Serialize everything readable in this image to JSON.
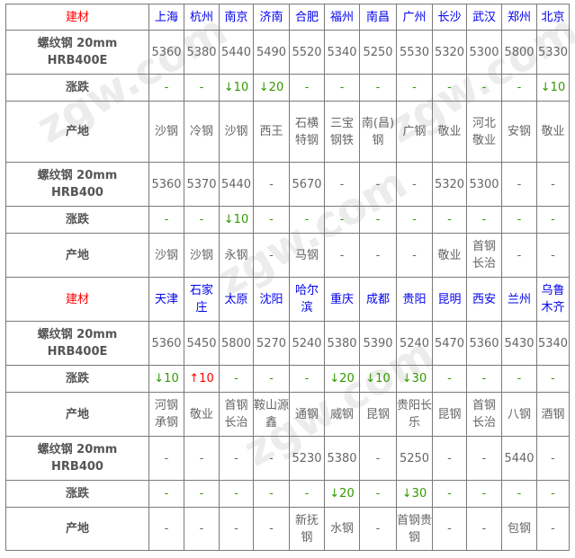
{
  "colors": {
    "header_label": "#ff0000",
    "city": "#0000ee",
    "down": "#339900",
    "up": "#ff0000",
    "text": "#666666"
  },
  "labels": {
    "material": "建材",
    "spec_e": "螺纹钢 20mm HRB400E",
    "spec": "螺纹钢 20mm HRB400",
    "change": "涨跌",
    "origin": "产地"
  },
  "blocks": [
    {
      "cities": [
        "上海",
        "杭州",
        "南京",
        "济南",
        "合肥",
        "福州",
        "南昌",
        "广州",
        "长沙",
        "武汉",
        "郑州",
        "北京"
      ],
      "hrb400e_price": [
        "5360",
        "5380",
        "5440",
        "5490",
        "5520",
        "5340",
        "5250",
        "5530",
        "5320",
        "5300",
        "5800",
        "5330"
      ],
      "hrb400e_change": [
        "-",
        "-",
        "↓10",
        "↓20",
        "-",
        "-",
        "-",
        "-",
        "-",
        "-",
        "-",
        "↓10"
      ],
      "hrb400e_origin": [
        "沙钢",
        "冷钢",
        "沙钢",
        "西王",
        "石横特钢",
        "三宝钢铁",
        "南(昌)钢",
        "广钢",
        "敬业",
        "河北敬业",
        "安钢",
        "敬业"
      ],
      "hrb400_price": [
        "5360",
        "5370",
        "5440",
        "-",
        "5670",
        "-",
        "-",
        "-",
        "5320",
        "5300",
        "-",
        "-"
      ],
      "hrb400_change": [
        "-",
        "-",
        "↓10",
        "-",
        "-",
        "-",
        "-",
        "-",
        "-",
        "-",
        "-",
        "-"
      ],
      "hrb400_origin": [
        "沙钢",
        "沙钢",
        "永钢",
        "-",
        "马钢",
        "-",
        "-",
        "-",
        "敬业",
        "首钢长治",
        "-",
        "-"
      ]
    },
    {
      "cities": [
        "天津",
        "石家庄",
        "太原",
        "沈阳",
        "哈尔滨",
        "重庆",
        "成都",
        "贵阳",
        "昆明",
        "西安",
        "兰州",
        "乌鲁木齐"
      ],
      "hrb400e_price": [
        "5360",
        "5450",
        "5800",
        "5270",
        "5240",
        "5380",
        "5390",
        "5240",
        "5470",
        "5360",
        "5430",
        "5340"
      ],
      "hrb400e_change": [
        "↓10",
        "↑10",
        "-",
        "-",
        "-",
        "↓20",
        "↓10",
        "↓30",
        "-",
        "-",
        "-",
        "-"
      ],
      "hrb400e_origin": [
        "河钢承钢",
        "敬业",
        "首钢长治",
        "鞍山源鑫",
        "通钢",
        "威钢",
        "昆钢",
        "贵阳长乐",
        "昆钢",
        "首钢长治",
        "八钢",
        "酒钢"
      ],
      "hrb400_price": [
        "-",
        "-",
        "-",
        "-",
        "5230",
        "5380",
        "-",
        "5250",
        "-",
        "-",
        "5440",
        "-"
      ],
      "hrb400_change": [
        "-",
        "-",
        "-",
        "-",
        "-",
        "↓20",
        "-",
        "↓30",
        "-",
        "-",
        "-",
        "-"
      ],
      "hrb400_origin": [
        "-",
        "-",
        "-",
        "-",
        "新抚钢",
        "水钢",
        "-",
        "首钢贵钢",
        "-",
        "-",
        "包钢",
        "-"
      ]
    }
  ]
}
